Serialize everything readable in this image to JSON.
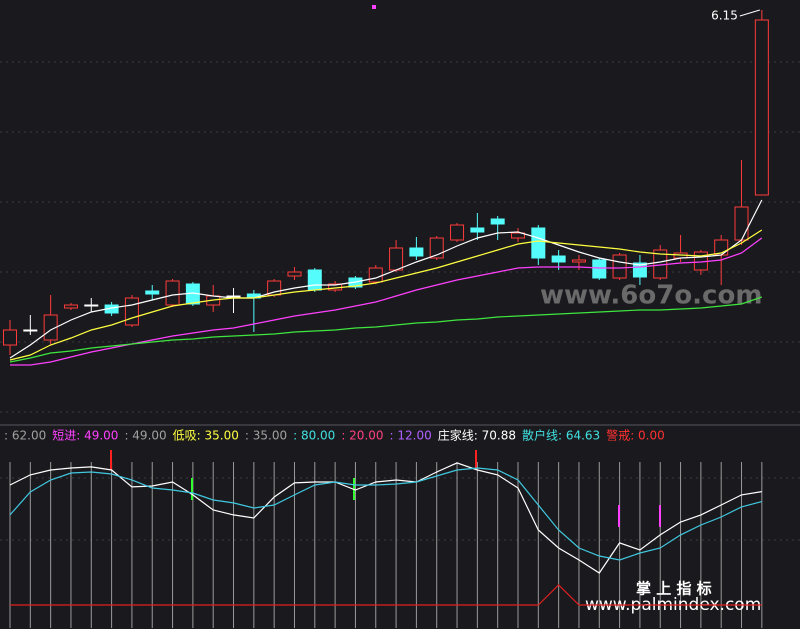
{
  "chart_data": [
    {
      "type": "candlestick",
      "ylim": [
        2.05,
        6.25
      ],
      "up_color": "#ff3b3b",
      "down_color": "#54fcfc",
      "flat_color": "#ffffff",
      "open": [
        2.8,
        2.95,
        2.85,
        3.17,
        3.2,
        3.2,
        3.0,
        3.34,
        3.2,
        3.41,
        3.2,
        3.29,
        3.31,
        3.3,
        3.49,
        3.55,
        3.35,
        3.47,
        3.43,
        3.55,
        3.77,
        3.67,
        3.85,
        3.97,
        4.06,
        3.87,
        3.97,
        3.69,
        3.63,
        3.65,
        3.47,
        3.62,
        3.47,
        3.67,
        3.55,
        3.7,
        3.85,
        4.3
      ],
      "high": [
        3.05,
        3.1,
        3.3,
        3.22,
        3.27,
        3.23,
        3.3,
        3.4,
        3.46,
        3.43,
        3.4,
        3.37,
        3.35,
        3.46,
        3.58,
        3.57,
        3.44,
        3.49,
        3.6,
        3.85,
        3.88,
        3.89,
        4.02,
        4.12,
        4.09,
        3.97,
        4.0,
        3.75,
        3.7,
        3.67,
        3.72,
        3.7,
        3.8,
        3.9,
        3.75,
        3.9,
        4.65,
        6.15
      ],
      "low": [
        2.7,
        2.9,
        2.8,
        3.15,
        3.13,
        3.09,
        2.98,
        3.25,
        3.18,
        3.19,
        3.13,
        3.12,
        2.93,
        3.28,
        3.45,
        3.33,
        3.33,
        3.36,
        3.41,
        3.53,
        3.65,
        3.65,
        3.83,
        3.85,
        3.85,
        3.83,
        3.6,
        3.55,
        3.55,
        3.45,
        3.45,
        3.4,
        3.45,
        3.63,
        3.5,
        3.4,
        3.8,
        4.3
      ],
      "close": [
        2.95,
        2.95,
        3.1,
        3.2,
        3.2,
        3.12,
        3.27,
        3.31,
        3.44,
        3.21,
        3.29,
        3.29,
        3.27,
        3.44,
        3.53,
        3.35,
        3.41,
        3.38,
        3.57,
        3.77,
        3.69,
        3.87,
        4.0,
        3.93,
        4.01,
        3.92,
        3.67,
        3.63,
        3.65,
        3.47,
        3.7,
        3.48,
        3.75,
        3.72,
        3.73,
        3.85,
        4.18,
        6.05
      ],
      "lines": [
        {
          "color": "#ffffff",
          "values": [
            2.67,
            2.8,
            2.95,
            3.05,
            3.13,
            3.17,
            3.2,
            3.25,
            3.3,
            3.32,
            3.29,
            3.27,
            3.27,
            3.33,
            3.37,
            3.4,
            3.4,
            3.43,
            3.47,
            3.55,
            3.63,
            3.7,
            3.79,
            3.87,
            3.92,
            3.93,
            3.87,
            3.8,
            3.73,
            3.67,
            3.63,
            3.6,
            3.63,
            3.67,
            3.68,
            3.7,
            3.85,
            4.25
          ]
        },
        {
          "color": "#ffff40",
          "values": [
            2.65,
            2.7,
            2.8,
            2.87,
            2.95,
            3.0,
            3.07,
            3.13,
            3.19,
            3.22,
            3.25,
            3.27,
            3.27,
            3.3,
            3.33,
            3.35,
            3.37,
            3.39,
            3.42,
            3.47,
            3.52,
            3.57,
            3.63,
            3.69,
            3.75,
            3.81,
            3.84,
            3.82,
            3.8,
            3.78,
            3.76,
            3.73,
            3.71,
            3.7,
            3.69,
            3.72,
            3.82,
            3.95
          ]
        },
        {
          "color": "#ff40ff",
          "values": [
            2.6,
            2.6,
            2.63,
            2.68,
            2.73,
            2.77,
            2.81,
            2.85,
            2.89,
            2.92,
            2.95,
            2.97,
            3.01,
            3.05,
            3.09,
            3.12,
            3.15,
            3.19,
            3.23,
            3.29,
            3.35,
            3.4,
            3.45,
            3.49,
            3.53,
            3.57,
            3.58,
            3.58,
            3.58,
            3.57,
            3.57,
            3.58,
            3.6,
            3.62,
            3.63,
            3.65,
            3.72,
            3.87
          ]
        },
        {
          "color": "#3ee63e",
          "values": [
            2.63,
            2.67,
            2.72,
            2.74,
            2.77,
            2.79,
            2.81,
            2.83,
            2.85,
            2.86,
            2.88,
            2.89,
            2.9,
            2.91,
            2.93,
            2.94,
            2.95,
            2.97,
            2.98,
            3.0,
            3.02,
            3.03,
            3.05,
            3.06,
            3.08,
            3.09,
            3.1,
            3.11,
            3.12,
            3.13,
            3.14,
            3.15,
            3.15,
            3.16,
            3.17,
            3.19,
            3.21,
            3.28
          ]
        }
      ],
      "annotation": "6.15",
      "watermark": "www.6o7o.com"
    },
    {
      "type": "line",
      "ylim": [
        -14.375,
        100
      ],
      "legend": [
        {
          "text": ": 62.00",
          "color": "#a0a0a0"
        },
        {
          "text": "短进: 49.00",
          "color": "#ff40ff"
        },
        {
          "text": ": 49.00",
          "color": "#a0a0a0"
        },
        {
          "text": "低吸: 35.00",
          "color": "#ffff40"
        },
        {
          "text": ": 35.00",
          "color": "#a0a0a0"
        },
        {
          "text": ": 80.00",
          "color": "#40e0e0"
        },
        {
          "text": ": 20.00",
          "color": "#ff4080"
        },
        {
          "text": ": 12.00",
          "color": "#b060ff"
        },
        {
          "text": "庄家线: 70.88",
          "color": "#ffffff"
        },
        {
          "text": "散户线: 64.63",
          "color": "#40e0e0"
        },
        {
          "text": "警戒: 0.00",
          "color": "#ff3030"
        }
      ],
      "series": [
        {
          "color": "#ffffff",
          "values": [
            75.0,
            81.3,
            84.4,
            85.6,
            86.3,
            84.4,
            73.8,
            74.4,
            76.9,
            68.8,
            59.4,
            56.3,
            54.4,
            67.5,
            76.3,
            76.9,
            76.9,
            71.9,
            76.9,
            78.1,
            76.9,
            83.1,
            88.8,
            84.4,
            81.3,
            73.1,
            46.9,
            35.6,
            28.1,
            20.0,
            38.8,
            34.4,
            43.8,
            51.9,
            56.3,
            62.5,
            68.8,
            70.88
          ]
        },
        {
          "color": "#40c8e0",
          "values": [
            56.3,
            70.6,
            78.1,
            82.5,
            83.1,
            81.9,
            78.1,
            73.1,
            71.9,
            70.0,
            65.6,
            63.8,
            60.6,
            62.5,
            68.8,
            75.0,
            76.9,
            75.0,
            75.0,
            75.6,
            76.9,
            80.6,
            84.4,
            85.6,
            84.4,
            78.1,
            62.5,
            46.9,
            35.6,
            30.6,
            28.1,
            32.5,
            35.6,
            43.8,
            50.0,
            55.0,
            61.3,
            64.63
          ]
        },
        {
          "color": "#e02020",
          "values": [
            0,
            0,
            0,
            0,
            0,
            0,
            0,
            0,
            0,
            0,
            0,
            0,
            0,
            0,
            0,
            0,
            0,
            0,
            0,
            0,
            0,
            0,
            0,
            0,
            0,
            0,
            0,
            12.5,
            0,
            0,
            0,
            0,
            0,
            0,
            0,
            0,
            0,
            0
          ]
        }
      ]
    }
  ],
  "watermark": {
    "title": "掌 上 指 标",
    "url": "www.palmindex.com"
  }
}
